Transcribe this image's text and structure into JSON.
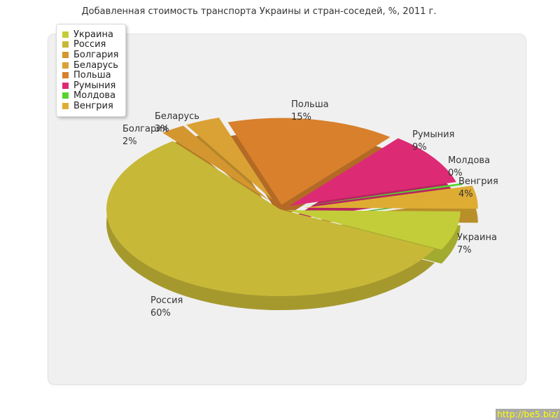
{
  "page": {
    "title": "Добавленная стоимость транспорта Украины и стран-соседей, %, 2011 г."
  },
  "chart_data": {
    "type": "pie",
    "title": "Добавленная стоимость транспорта Украины и стран-соседей, %, 2011 г.",
    "unit": "%",
    "style": "3d-exploded",
    "legend_position": "top-left",
    "labels_format": "name and percent",
    "series": [
      {
        "label": "Украина",
        "value": 7,
        "color": "#c3cd39"
      },
      {
        "label": "Россия",
        "value": 60,
        "color": "#c7b838"
      },
      {
        "label": "Болгария",
        "value": 2,
        "color": "#d4962f"
      },
      {
        "label": "Беларусь",
        "value": 3,
        "color": "#daa134"
      },
      {
        "label": "Польша",
        "value": 15,
        "color": "#d8802c"
      },
      {
        "label": "Румыния",
        "value": 9,
        "color": "#dd2a75"
      },
      {
        "label": "Молдова",
        "value": 0,
        "color": "#55d42f"
      },
      {
        "label": "Венгрия",
        "value": 4,
        "color": "#dfac33"
      }
    ]
  },
  "footer": {
    "source_link": "http://be5.biz/"
  }
}
